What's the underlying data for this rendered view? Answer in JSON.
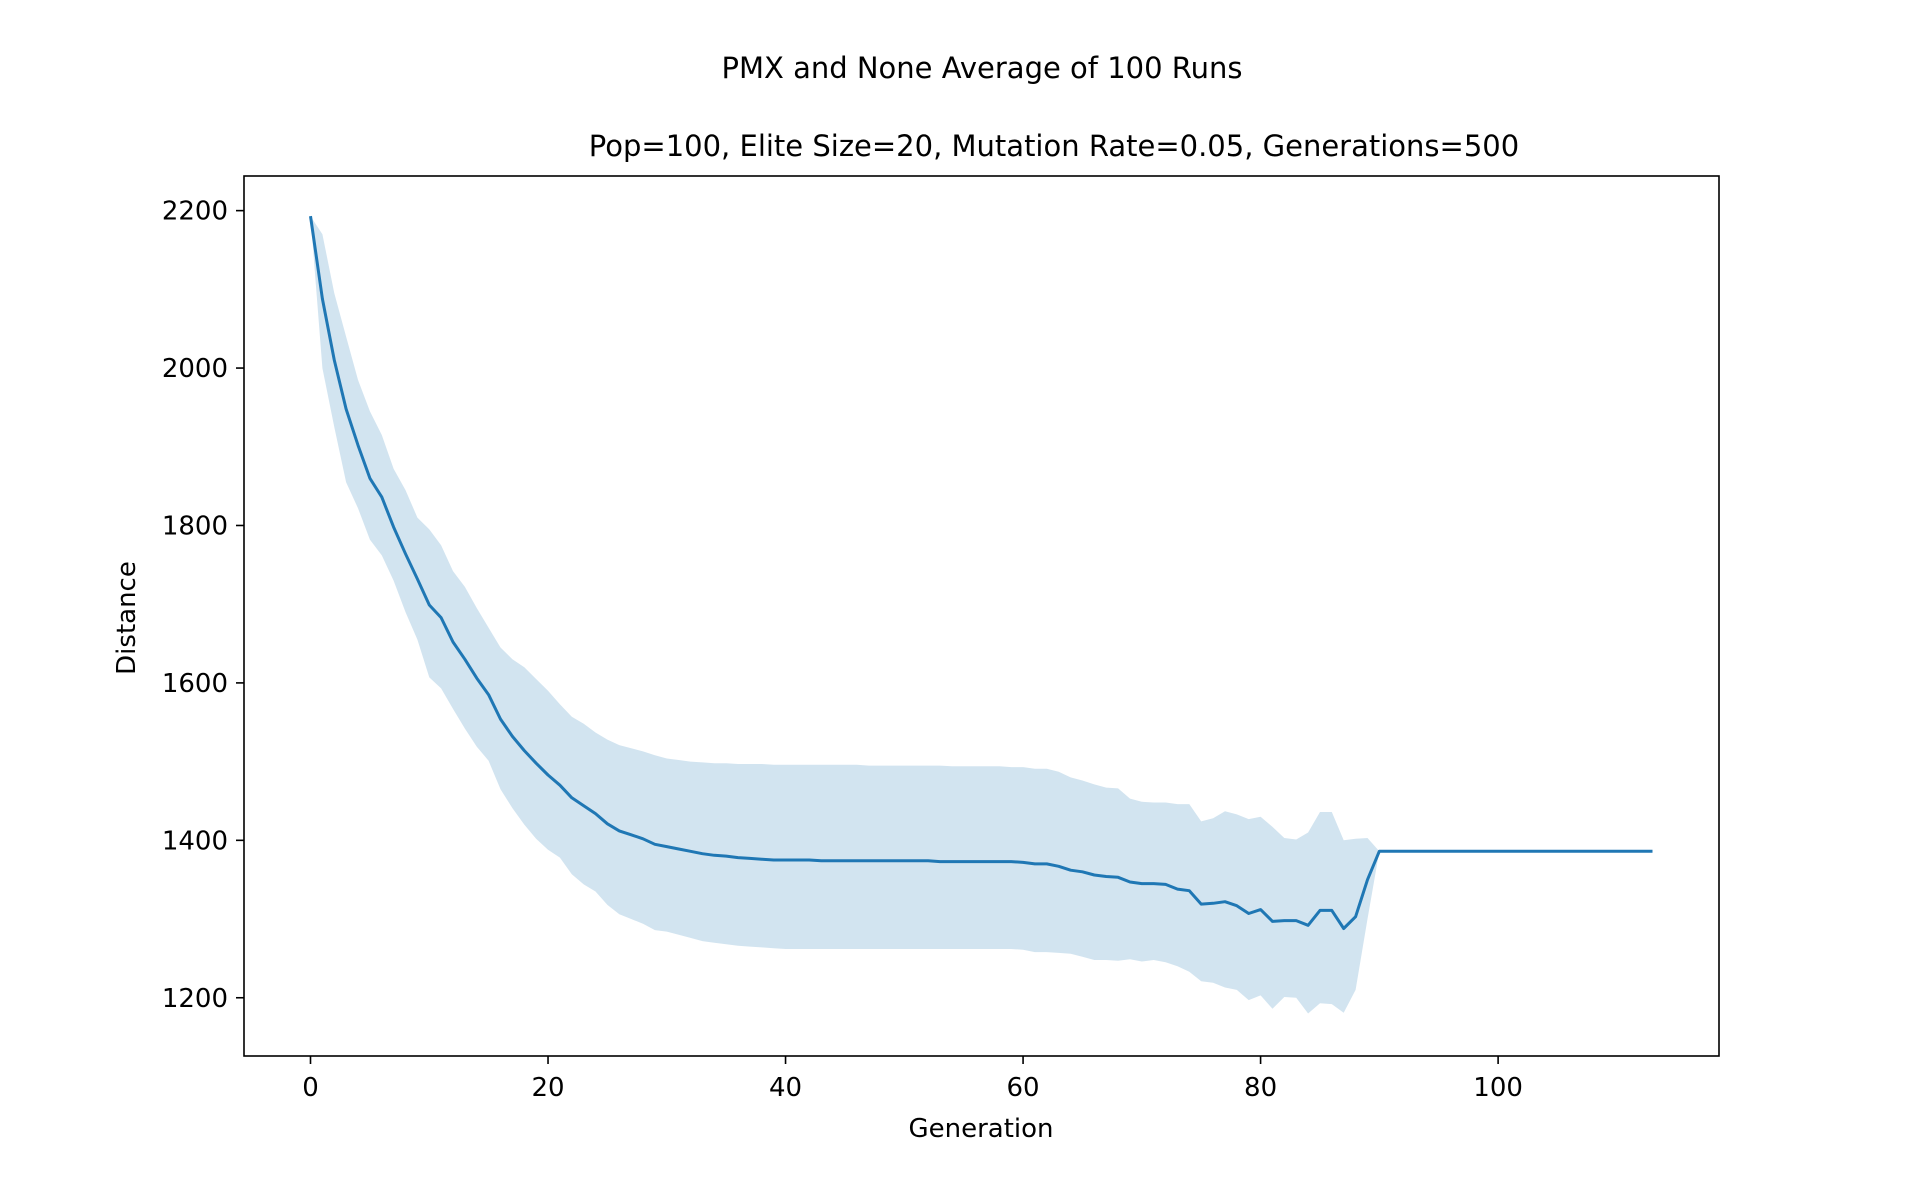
{
  "chart_data": {
    "type": "line",
    "title": "PMX and None Average of 100 Runs",
    "subtitle": "Pop=100, Elite Size=20, Mutation Rate=0.05, Generations=500",
    "xlabel": "Generation",
    "ylabel": "Distance",
    "xlim": [
      -5.6,
      118.6
    ],
    "ylim": [
      1126,
      2244
    ],
    "xticks": [
      0,
      20,
      40,
      60,
      80,
      100
    ],
    "yticks": [
      1200,
      1400,
      1600,
      1800,
      2000,
      2200
    ],
    "grid": false,
    "legend": "none",
    "colors": {
      "line": "#1f77b4",
      "band": "#1f77b4"
    },
    "series": [
      {
        "x": [
          0,
          1,
          2,
          3,
          4,
          5,
          6,
          7,
          8,
          9,
          10,
          11,
          12,
          13,
          14,
          15,
          16,
          17,
          18,
          19,
          20,
          21,
          22,
          23,
          24,
          25,
          26,
          27,
          28,
          29,
          30,
          31,
          32,
          33,
          34,
          35,
          36,
          37,
          38,
          39,
          40,
          41,
          42,
          43,
          44,
          45,
          46,
          47,
          48,
          49,
          50,
          51,
          52,
          53,
          54,
          55,
          56,
          57,
          58,
          59,
          60,
          61,
          62,
          63,
          64,
          65,
          66,
          67,
          68,
          69,
          70,
          71,
          72,
          73,
          74,
          75,
          76,
          77,
          78,
          79,
          80,
          81,
          82,
          83,
          84,
          85,
          86,
          87,
          88,
          89,
          90,
          91,
          92,
          93,
          94,
          95,
          96,
          97,
          98,
          99,
          100,
          101,
          102,
          103,
          104,
          105,
          106,
          107,
          108,
          109,
          110,
          111,
          112,
          113
        ],
        "mean": [
          2193,
          2088,
          2010,
          1948,
          1902,
          1860,
          1836,
          1798,
          1764,
          1732,
          1699,
          1683,
          1652,
          1630,
          1606,
          1585,
          1554,
          1532,
          1514,
          1498,
          1483,
          1470,
          1454,
          1444,
          1434,
          1421,
          1412,
          1407,
          1402,
          1395,
          1392,
          1389,
          1386,
          1383,
          1381,
          1380,
          1378,
          1377,
          1376,
          1375,
          1375,
          1375,
          1375,
          1374,
          1374,
          1374,
          1374,
          1374,
          1374,
          1374,
          1374,
          1374,
          1374,
          1373,
          1373,
          1373,
          1373,
          1373,
          1373,
          1373,
          1372,
          1370,
          1370,
          1367,
          1362,
          1360,
          1356,
          1354,
          1353,
          1347,
          1345,
          1345,
          1344,
          1338,
          1336,
          1319,
          1320,
          1322,
          1317,
          1307,
          1312,
          1297,
          1298,
          1298,
          1292,
          1311,
          1311,
          1288,
          1303,
          1350,
          1386,
          1386,
          1386,
          1386,
          1386,
          1386,
          1386,
          1386,
          1386,
          1386,
          1386,
          1386,
          1386,
          1386,
          1386,
          1386,
          1386,
          1386,
          1386,
          1386,
          1386,
          1386,
          1386,
          1386
        ],
        "upper": [
          2193,
          2170,
          2095,
          2040,
          1985,
          1945,
          1915,
          1872,
          1845,
          1810,
          1795,
          1775,
          1742,
          1722,
          1695,
          1670,
          1645,
          1630,
          1620,
          1605,
          1590,
          1573,
          1557,
          1548,
          1537,
          1528,
          1521,
          1517,
          1513,
          1508,
          1504,
          1502,
          1500,
          1499,
          1498,
          1498,
          1497,
          1497,
          1497,
          1496,
          1496,
          1496,
          1496,
          1496,
          1496,
          1496,
          1496,
          1495,
          1495,
          1495,
          1495,
          1495,
          1495,
          1495,
          1494,
          1494,
          1494,
          1494,
          1494,
          1493,
          1493,
          1491,
          1491,
          1487,
          1480,
          1476,
          1471,
          1467,
          1466,
          1453,
          1449,
          1448,
          1448,
          1446,
          1446,
          1424,
          1428,
          1437,
          1433,
          1427,
          1430,
          1417,
          1403,
          1401,
          1410,
          1436,
          1436,
          1400,
          1402,
          1403,
          1386,
          1386,
          1386,
          1386,
          1386,
          1386,
          1386,
          1386,
          1386,
          1386,
          1386,
          1386,
          1386,
          1386,
          1386,
          1386,
          1386,
          1386,
          1386,
          1386,
          1386,
          1386,
          1386,
          1386
        ],
        "lower": [
          2193,
          2000,
          1925,
          1855,
          1822,
          1782,
          1762,
          1730,
          1690,
          1655,
          1607,
          1593,
          1567,
          1542,
          1519,
          1501,
          1465,
          1441,
          1420,
          1402,
          1388,
          1378,
          1357,
          1344,
          1335,
          1318,
          1306,
          1300,
          1294,
          1286,
          1284,
          1280,
          1276,
          1272,
          1270,
          1268,
          1266,
          1265,
          1264,
          1263,
          1262,
          1262,
          1262,
          1262,
          1262,
          1262,
          1262,
          1262,
          1262,
          1262,
          1262,
          1262,
          1262,
          1262,
          1262,
          1262,
          1262,
          1262,
          1262,
          1262,
          1261,
          1258,
          1258,
          1257,
          1256,
          1252,
          1248,
          1248,
          1247,
          1249,
          1246,
          1248,
          1245,
          1240,
          1233,
          1221,
          1219,
          1213,
          1210,
          1197,
          1203,
          1186,
          1201,
          1200,
          1180,
          1193,
          1192,
          1181,
          1210,
          1300,
          1386,
          1386,
          1386,
          1386,
          1386,
          1386,
          1386,
          1386,
          1386,
          1386,
          1386,
          1386,
          1386,
          1386,
          1386,
          1386,
          1386,
          1386,
          1386,
          1386,
          1386,
          1386,
          1386,
          1386
        ]
      }
    ]
  }
}
